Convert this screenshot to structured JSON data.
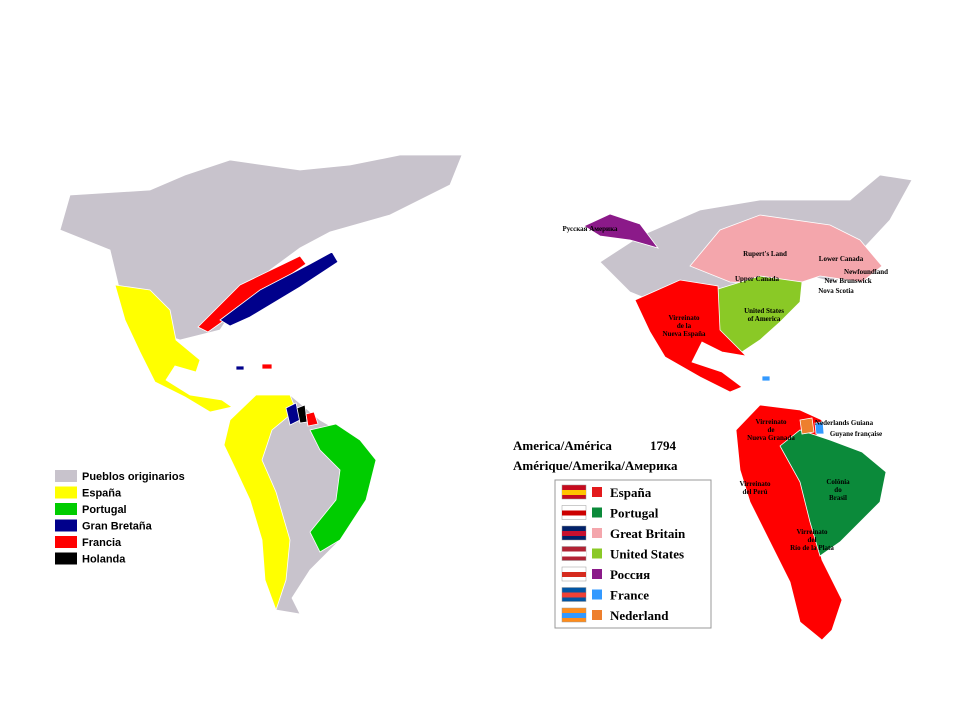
{
  "left_map": {
    "legend": [
      "Pueblos originarios",
      "España",
      "Portugal",
      "Gran Bretaña",
      "Francia",
      "Holanda"
    ]
  },
  "right_map": {
    "title": "America/América",
    "year": "1794",
    "subtitle": "Amérique/Amerika/Америка",
    "legend": [
      "España",
      "Portugal",
      "Great Britain",
      "United States",
      "Россия",
      "France",
      "Nederland"
    ],
    "labels": [
      [
        "Русская Америка"
      ],
      [
        "Rupert's Land"
      ],
      [
        "Lower Canada"
      ],
      [
        "Newfoundland"
      ],
      [
        "Upper Canada"
      ],
      [
        "New Brunswick"
      ],
      [
        "Nova Scotia"
      ],
      [
        "United States",
        "of America"
      ],
      [
        "Virreinato",
        "de la",
        "Nueva España"
      ],
      [
        "Nederlands Guiana"
      ],
      [
        "Guyane française"
      ],
      [
        "Virreinato",
        "de",
        "Nueva Granada"
      ],
      [
        "Colônia",
        "do",
        "Brasil"
      ],
      [
        "Virreinato",
        "del Perú"
      ],
      [
        "Virreinato",
        "del",
        "Río de la Plata"
      ]
    ]
  }
}
